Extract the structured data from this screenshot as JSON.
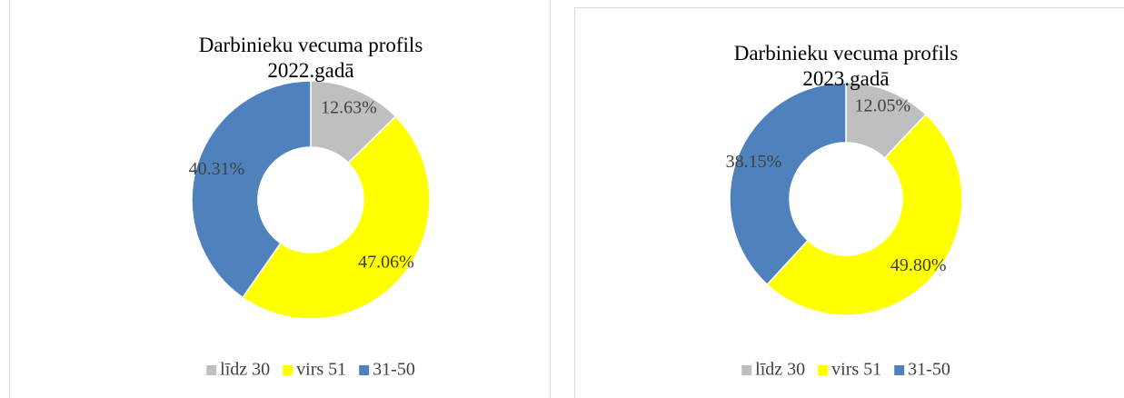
{
  "chart_data": [
    {
      "type": "pie",
      "donut": true,
      "title": "Darbinieku vecuma profils 2022.gadā",
      "categories": [
        "līdz 30",
        "virs 51",
        "31-50"
      ],
      "values": [
        12.63,
        47.06,
        40.31
      ],
      "value_labels": [
        "12.63%",
        "47.06%",
        "40.31%"
      ],
      "colors": [
        "#bfbfbf",
        "#ffff00",
        "#4f81bd"
      ],
      "legend": "bottom"
    },
    {
      "type": "pie",
      "donut": true,
      "title": "Darbinieku vecuma profils 2023.gadā",
      "categories": [
        "līdz 30",
        "virs 51",
        "31-50"
      ],
      "values": [
        12.05,
        49.8,
        38.15
      ],
      "value_labels": [
        "12.05%",
        "49.80%",
        "38.15%"
      ],
      "colors": [
        "#bfbfbf",
        "#ffff00",
        "#4f81bd"
      ],
      "legend": "bottom"
    }
  ]
}
